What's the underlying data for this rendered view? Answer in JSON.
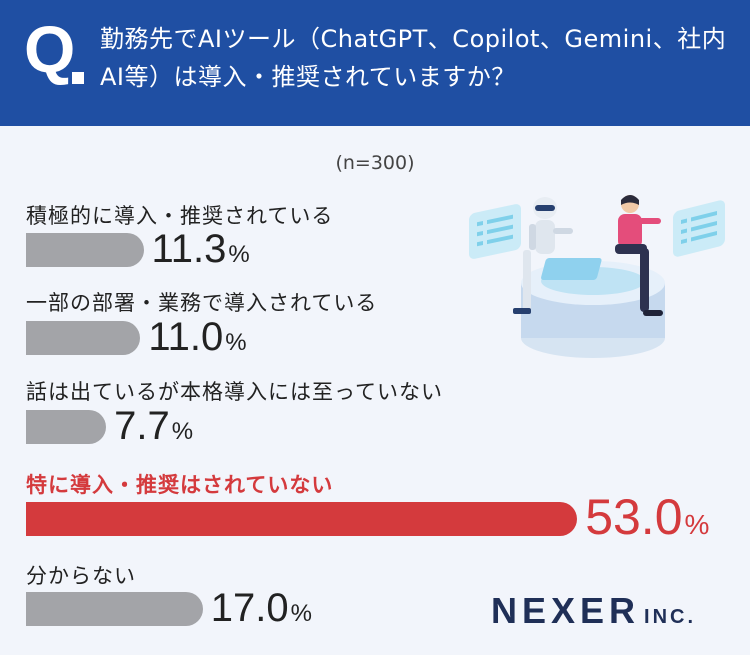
{
  "header": {
    "q_mark": "Q",
    "question": "勤務先でAIツール（ChatGPT、Copilot、Gemini、社内AI等）は導入・推奨されていますか？"
  },
  "sample_note": "(n=300)",
  "chart_data": {
    "type": "bar",
    "orientation": "horizontal",
    "unit": "%",
    "categories": [
      "積極的に導入・推奨されている",
      "一部の部署・業務で導入されている",
      "話は出ているが本格導入には至っていない",
      "特に導入・推奨はされていない",
      "分からない"
    ],
    "values": [
      11.3,
      11.0,
      7.7,
      53.0,
      17.0
    ],
    "value_labels": [
      "11.3",
      "11.0",
      "7.7",
      "53.0",
      "17.0"
    ],
    "highlight_index": 3,
    "colors": {
      "default": "#a3a4a8",
      "highlight": "#d43a3d"
    }
  },
  "logo": {
    "main": "NEXER",
    "sub": "INC."
  },
  "colors": {
    "header_bg": "#1f4fa3",
    "page_bg": "#f2f5fb",
    "highlight": "#d43a3d",
    "bar": "#a3a4a8",
    "logo": "#1f2f57"
  },
  "illustration": {
    "icon": "ai-robot-and-person-illustration"
  }
}
